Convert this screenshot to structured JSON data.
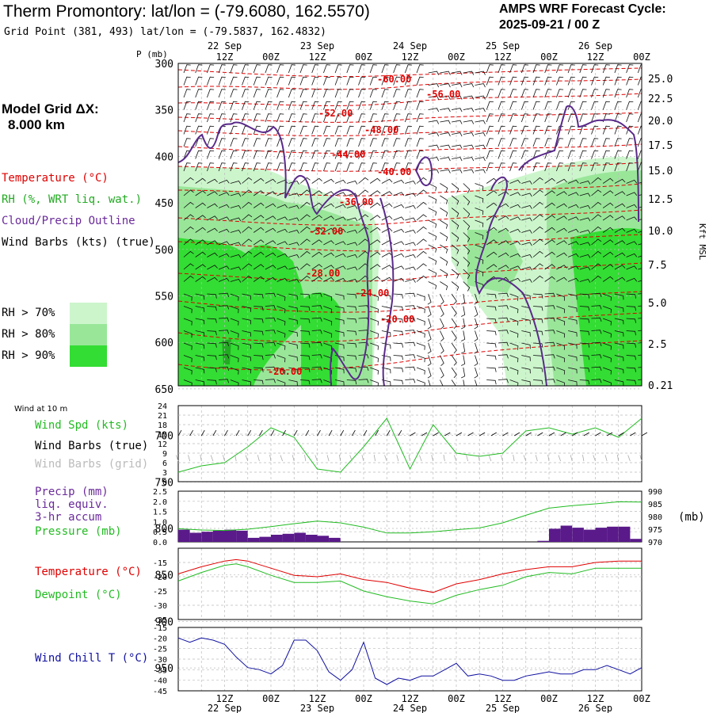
{
  "header": {
    "title": "Therm Promontory:  lat/lon = (-79.6080, 162.5570)",
    "grid_point": "Grid Point (381, 493) lat/lon = (-79.5837, 162.4832)",
    "cycle_line1": "AMPS WRF Forecast Cycle:",
    "cycle_line2": "2025-09-21 / 00  Z"
  },
  "legend": {
    "model_grid_line1": "Model Grid ΔX:",
    "model_grid_line2": "8.000 km",
    "temperature": "Temperature (°C)",
    "rh": "RH (%, WRT liq. wat.)",
    "cloud": "Cloud/Precip Outline",
    "wind_barbs": "Wind Barbs (kts) (true)",
    "rh70": "RH > 70%",
    "rh80": "RH > 80%",
    "rh90": "RH > 90%",
    "p_mb": "P (mb)",
    "kft": "Kft MSL",
    "wind10": "Wind at 10 m",
    "wind_spd": "Wind Spd (kts)",
    "wind_barbs_true": "Wind Barbs (true)",
    "wind_barbs_grid": "Wind Barbs (grid)",
    "precip": "Precip (mm)",
    "liq": "liq. equiv.",
    "accum": "3-hr accum",
    "pressure": "Pressure (mb)",
    "mb": "(mb)",
    "temp2": "Temperature (°C)",
    "dew": "Dewpoint (°C)",
    "windchill": "Wind Chill T (°C)"
  },
  "colors": {
    "temp": "#e00000",
    "rh70": "#ccf5cc",
    "rh80": "#99e699",
    "rh90": "#33dd33",
    "cloud": "#5a2a8a",
    "green": "#22bb22",
    "blue": "#1010a0",
    "precip": "#5a1a8a",
    "grey": "#aaaaaa"
  },
  "chart_data": {
    "time_axis": {
      "top_dates": [
        "22 Sep",
        "23 Sep",
        "24 Sep",
        "25 Sep",
        "26 Sep"
      ],
      "hours": [
        "12Z",
        "00Z",
        "12Z",
        "00Z",
        "12Z",
        "00Z",
        "12Z",
        "00Z",
        "12Z",
        "00Z"
      ],
      "bottom_dates": [
        "22 Sep",
        "23 Sep",
        "24 Sep",
        "25 Sep",
        "26 Sep"
      ],
      "forecast_hours_range": [
        0,
        120
      ]
    },
    "cross_section": {
      "type": "heatmap",
      "pressure_levels": [
        300,
        350,
        400,
        450,
        500,
        550,
        600,
        650,
        700,
        750,
        800,
        850,
        900,
        950
      ],
      "height_kft": [
        "25.0",
        "22.5",
        "20.0",
        "17.5",
        "15.0",
        "12.5",
        "10.0",
        "7.5",
        "5.0",
        "2.5",
        "0.21"
      ],
      "temperature_contour_labels": [
        "-60.00",
        "-56.00",
        "-52.00",
        "-48.00",
        "-44.00",
        "-40.00",
        "-36.00",
        "-32.00",
        "-28.00",
        "-24.00",
        "-20.00",
        "-20.00"
      ]
    },
    "panels": [
      {
        "name": "wind",
        "type": "line",
        "ylim": [
          0,
          24
        ],
        "yticks": [
          "24",
          "21",
          "18",
          "15",
          "12",
          "9",
          "6",
          "3",
          "0"
        ],
        "x": [
          0,
          6,
          12,
          18,
          24,
          30,
          36,
          42,
          48,
          54,
          60,
          66,
          72,
          78,
          84,
          90,
          96,
          102,
          108,
          114,
          120
        ],
        "series": [
          {
            "name": "Wind Spd (kts)",
            "values": [
              3,
              5,
              6,
              11,
              17,
              14,
              4,
              3,
              11,
              20,
              4,
              18,
              9,
              8,
              9,
              16,
              17,
              15,
              17,
              14,
              20
            ]
          }
        ]
      },
      {
        "name": "precip_pressure",
        "type": "bar",
        "ylim": [
          0,
          2.5
        ],
        "yticks": [
          "2.5",
          "2.0",
          "1.5",
          "1.0",
          "0.5",
          "0.0"
        ],
        "y2lim": [
          970,
          990
        ],
        "y2ticks": [
          "990",
          "985",
          "980",
          "975",
          "970"
        ],
        "precip_bars": [
          {
            "t0": 0,
            "t1": 3,
            "v": 0.6
          },
          {
            "t0": 3,
            "t1": 6,
            "v": 0.45
          },
          {
            "t0": 6,
            "t1": 9,
            "v": 0.5
          },
          {
            "t0": 9,
            "t1": 12,
            "v": 0.55
          },
          {
            "t0": 12,
            "t1": 15,
            "v": 0.6
          },
          {
            "t0": 15,
            "t1": 18,
            "v": 0.55
          },
          {
            "t0": 18,
            "t1": 21,
            "v": 0.2
          },
          {
            "t0": 21,
            "t1": 24,
            "v": 0.25
          },
          {
            "t0": 24,
            "t1": 27,
            "v": 0.35
          },
          {
            "t0": 27,
            "t1": 30,
            "v": 0.4
          },
          {
            "t0": 30,
            "t1": 33,
            "v": 0.45
          },
          {
            "t0": 33,
            "t1": 36,
            "v": 0.35
          },
          {
            "t0": 36,
            "t1": 39,
            "v": 0.3
          },
          {
            "t0": 39,
            "t1": 42,
            "v": 0.2
          },
          {
            "t0": 93,
            "t1": 96,
            "v": 0.05
          },
          {
            "t0": 96,
            "t1": 99,
            "v": 0.65
          },
          {
            "t0": 99,
            "t1": 102,
            "v": 0.8
          },
          {
            "t0": 102,
            "t1": 105,
            "v": 0.7
          },
          {
            "t0": 105,
            "t1": 108,
            "v": 0.6
          },
          {
            "t0": 108,
            "t1": 111,
            "v": 0.7
          },
          {
            "t0": 111,
            "t1": 114,
            "v": 0.75
          },
          {
            "t0": 114,
            "t1": 117,
            "v": 0.75
          },
          {
            "t0": 117,
            "t1": 120,
            "v": 0.15
          }
        ],
        "pressure": {
          "x": [
            0,
            6,
            12,
            18,
            24,
            30,
            36,
            42,
            48,
            54,
            60,
            66,
            72,
            78,
            84,
            90,
            96,
            102,
            108,
            114,
            120
          ],
          "values": [
            975.2,
            974.7,
            974.5,
            975.0,
            976.0,
            977.2,
            978.2,
            977.5,
            975.8,
            973.5,
            973.5,
            974.0,
            974.8,
            975.5,
            977.5,
            980.5,
            983.3,
            984.3,
            985.0,
            985.8,
            985.7
          ]
        }
      },
      {
        "name": "temperature",
        "type": "line",
        "ylim": [
          -35,
          -10
        ],
        "yticks": [
          "-15",
          "-20",
          "-25",
          "-30",
          "-35"
        ],
        "x": [
          0,
          6,
          12,
          15,
          18,
          24,
          30,
          36,
          42,
          48,
          54,
          60,
          66,
          72,
          78,
          84,
          90,
          96,
          102,
          108,
          114,
          120
        ],
        "series": [
          {
            "name": "Temperature (°C)",
            "values": [
              -19,
              -16.5,
              -14.5,
              -14,
              -14.5,
              -17,
              -19.5,
              -20,
              -19,
              -21,
              -22,
              -24,
              -25.5,
              -22.5,
              -21,
              -19,
              -17.5,
              -16.5,
              -16.5,
              -15,
              -14.5,
              -14.5
            ]
          },
          {
            "name": "Dewpoint (°C)",
            "values": [
              -21.5,
              -18.5,
              -16,
              -15.5,
              -16.5,
              -19.5,
              -22,
              -22,
              -21.5,
              -25,
              -27,
              -28.5,
              -29.5,
              -26.5,
              -24.5,
              -23,
              -20,
              -18.5,
              -19,
              -17,
              -17,
              -17
            ]
          }
        ]
      },
      {
        "name": "windchill",
        "type": "line",
        "ylim": [
          -45,
          -15
        ],
        "yticks": [
          "-15",
          "-20",
          "-25",
          "-30",
          "-35",
          "-40",
          "-45"
        ],
        "x": [
          0,
          3,
          6,
          9,
          12,
          15,
          18,
          21,
          24,
          27,
          30,
          33,
          36,
          39,
          42,
          45,
          48,
          51,
          54,
          57,
          60,
          63,
          66,
          69,
          72,
          75,
          78,
          81,
          84,
          87,
          90,
          93,
          96,
          99,
          102,
          105,
          108,
          111,
          114,
          117,
          120
        ],
        "series": [
          {
            "name": "Wind Chill T (°C)",
            "values": [
              -20,
              -22,
              -20,
              -21,
              -23,
              -29,
              -34,
              -35,
              -37,
              -33,
              -21,
              -21,
              -26,
              -36,
              -40,
              -35,
              -22,
              -39,
              -42,
              -39,
              -40,
              -38,
              -38,
              -35,
              -32,
              -38,
              -37,
              -38,
              -40,
              -40,
              -38,
              -37,
              -36,
              -37,
              -37,
              -35,
              -35,
              -33,
              -35,
              -37,
              -34
            ]
          }
        ]
      }
    ]
  }
}
